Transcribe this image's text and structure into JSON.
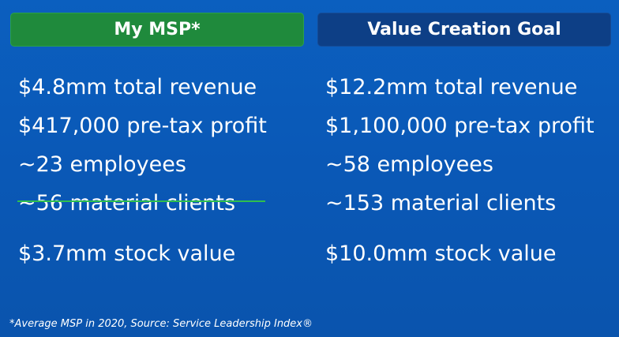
{
  "left": {
    "header": "My MSP*",
    "items": [
      "$4.8mm total revenue",
      "$417,000 pre-tax profit",
      "~23 employees",
      "~56 material clients",
      "$3.7mm stock value"
    ]
  },
  "right": {
    "header": "Value Creation Goal",
    "items": [
      "$12.2mm total revenue",
      "$1,100,000 pre-tax profit",
      "~58 employees",
      "~153 material clients",
      "$10.0mm stock value"
    ]
  },
  "footnote": "*Average MSP in 2020, Source: Service Leadership Index®",
  "colors": {
    "background": "#0b5fbf",
    "left_header": "#1f8a3c",
    "right_header": "#0d3f86",
    "underline": "#2fbf4e"
  }
}
